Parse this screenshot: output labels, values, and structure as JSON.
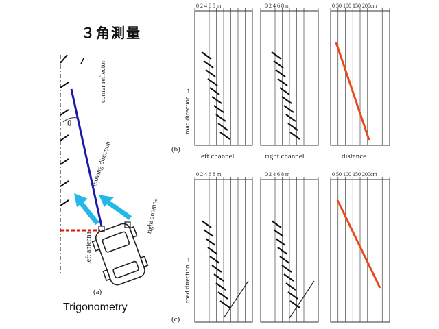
{
  "title": "３角測量",
  "caption": "Trigonometry",
  "left_figure": {
    "corner_reflector": "corner reflector",
    "theta": "θ",
    "moving_direction": "moving direction",
    "left_antenna": "left antenna",
    "right_antenna": "right antenna",
    "label": "(a)"
  },
  "panel_b": {
    "label": "(b)",
    "road_direction": "road direction →",
    "channels": [
      {
        "name": "left channel",
        "scale": "0 2 4 6 8 m"
      },
      {
        "name": "right channel",
        "scale": "0 2 4 6 8 m"
      },
      {
        "name": "distance",
        "scale": "0 50 100 150 200cm"
      }
    ]
  },
  "panel_c": {
    "label": "(c)",
    "road_direction": "road direction →",
    "channels": [
      {
        "name": "",
        "scale": "0 2 4 6 8 m"
      },
      {
        "name": "",
        "scale": "0 2 4 6 8 m"
      },
      {
        "name": "",
        "scale": "0 50 100 150 200cm"
      }
    ]
  },
  "colors": {
    "blue_line": "#1a1aa8",
    "cyan_arrow": "#22b8e8",
    "red_dash": "#e01010",
    "orange_line": "#e84a1a"
  }
}
